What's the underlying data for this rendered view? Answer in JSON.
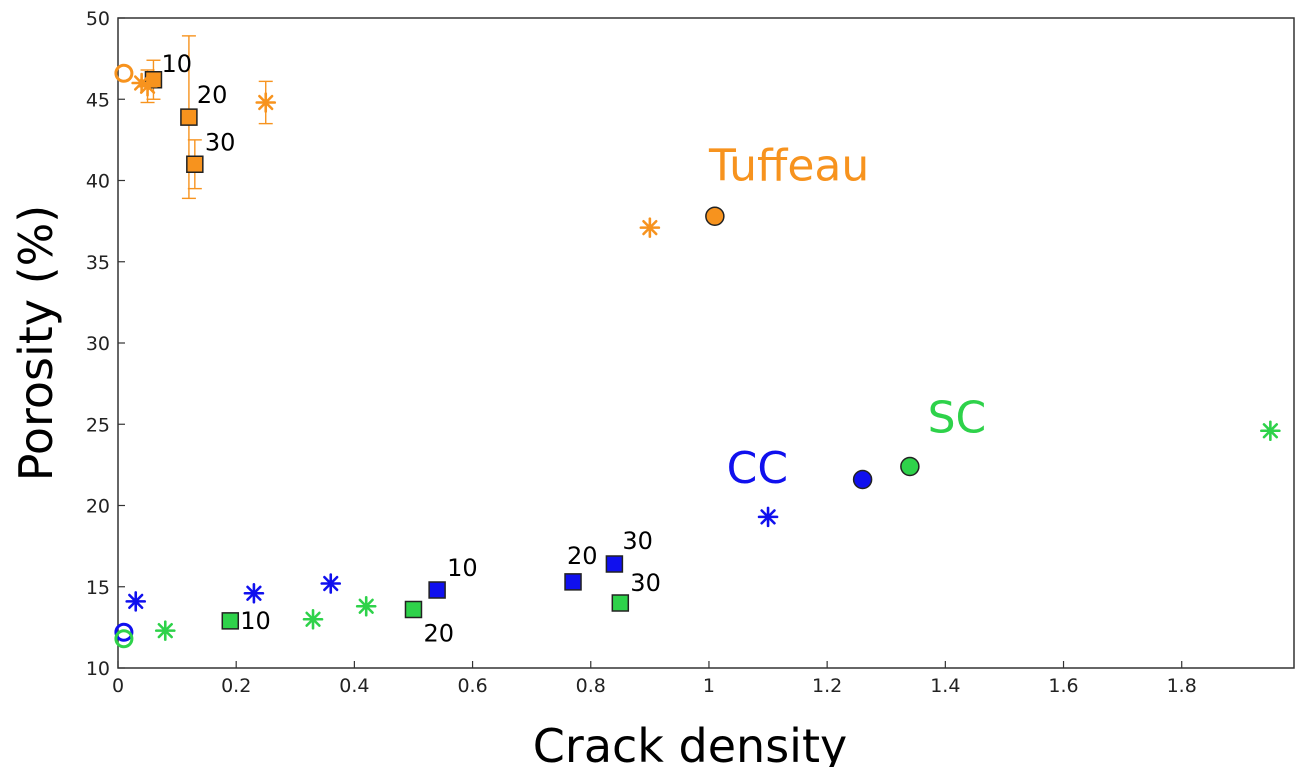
{
  "chart_data": {
    "type": "scatter",
    "title": "",
    "xlabel": "Crack density",
    "ylabel": "Porosity (%)",
    "xlim": [
      0,
      1.99
    ],
    "ylim": [
      10,
      50
    ],
    "x_ticks": [
      "0",
      "0.2",
      "0.4",
      "0.6",
      "0.8",
      "1",
      "1.2",
      "1.4",
      "1.6",
      "1.8"
    ],
    "y_ticks": [
      "10",
      "15",
      "20",
      "25",
      "30",
      "35",
      "40",
      "45",
      "50"
    ],
    "grid": false,
    "colors": {
      "tuffeau": "#f7931e",
      "cc": "#1010ee",
      "sc": "#2ed24a"
    },
    "group_labels": [
      {
        "text": "Tuffeau",
        "group": "tuffeau",
        "x": 1.0,
        "y": 40.0
      },
      {
        "text": "CC",
        "group": "cc",
        "x": 1.03,
        "y": 21.4
      },
      {
        "text": "SC",
        "group": "sc",
        "x": 1.37,
        "y": 24.5
      }
    ],
    "series": [
      {
        "group": "tuffeau",
        "marker": "circle",
        "points": [
          {
            "x": 1.01,
            "y": 37.8
          }
        ]
      },
      {
        "group": "tuffeau",
        "marker": "circle-open",
        "points": [
          {
            "x": 0.01,
            "y": 46.6
          }
        ]
      },
      {
        "group": "tuffeau",
        "marker": "square",
        "points": [
          {
            "x": 0.06,
            "y": 46.2,
            "label": "10",
            "err": 1.2
          },
          {
            "x": 0.12,
            "y": 43.9,
            "label": "20",
            "err": 5.0
          },
          {
            "x": 0.13,
            "y": 41.0,
            "label": "30",
            "err": 1.5
          }
        ]
      },
      {
        "group": "tuffeau",
        "marker": "asterisk",
        "points": [
          {
            "x": 0.04,
            "y": 46.0
          },
          {
            "x": 0.05,
            "y": 45.8,
            "err": 1.0
          },
          {
            "x": 0.25,
            "y": 44.8,
            "err": 1.3
          },
          {
            "x": 0.9,
            "y": 37.1
          }
        ]
      },
      {
        "group": "cc",
        "marker": "circle",
        "points": [
          {
            "x": 1.26,
            "y": 21.6
          }
        ]
      },
      {
        "group": "cc",
        "marker": "circle-open",
        "points": [
          {
            "x": 0.01,
            "y": 12.2
          }
        ]
      },
      {
        "group": "cc",
        "marker": "square",
        "points": [
          {
            "x": 0.54,
            "y": 14.8,
            "label": "10"
          },
          {
            "x": 0.77,
            "y": 15.3,
            "label": "20"
          },
          {
            "x": 0.84,
            "y": 16.4,
            "label": "30"
          }
        ]
      },
      {
        "group": "cc",
        "marker": "asterisk",
        "points": [
          {
            "x": 0.03,
            "y": 14.1
          },
          {
            "x": 0.23,
            "y": 14.6
          },
          {
            "x": 0.36,
            "y": 15.2
          },
          {
            "x": 1.1,
            "y": 19.3
          }
        ]
      },
      {
        "group": "sc",
        "marker": "circle",
        "points": [
          {
            "x": 1.34,
            "y": 22.4
          }
        ]
      },
      {
        "group": "sc",
        "marker": "circle-open",
        "points": [
          {
            "x": 0.01,
            "y": 11.8
          }
        ]
      },
      {
        "group": "sc",
        "marker": "square",
        "points": [
          {
            "x": 0.19,
            "y": 12.9,
            "label": "10"
          },
          {
            "x": 0.5,
            "y": 13.6,
            "label": "20"
          },
          {
            "x": 0.85,
            "y": 14.0,
            "label": "30"
          }
        ]
      },
      {
        "group": "sc",
        "marker": "asterisk",
        "points": [
          {
            "x": 0.08,
            "y": 12.3
          },
          {
            "x": 0.33,
            "y": 13.0
          },
          {
            "x": 0.42,
            "y": 13.8
          },
          {
            "x": 1.95,
            "y": 24.6
          }
        ]
      }
    ]
  }
}
